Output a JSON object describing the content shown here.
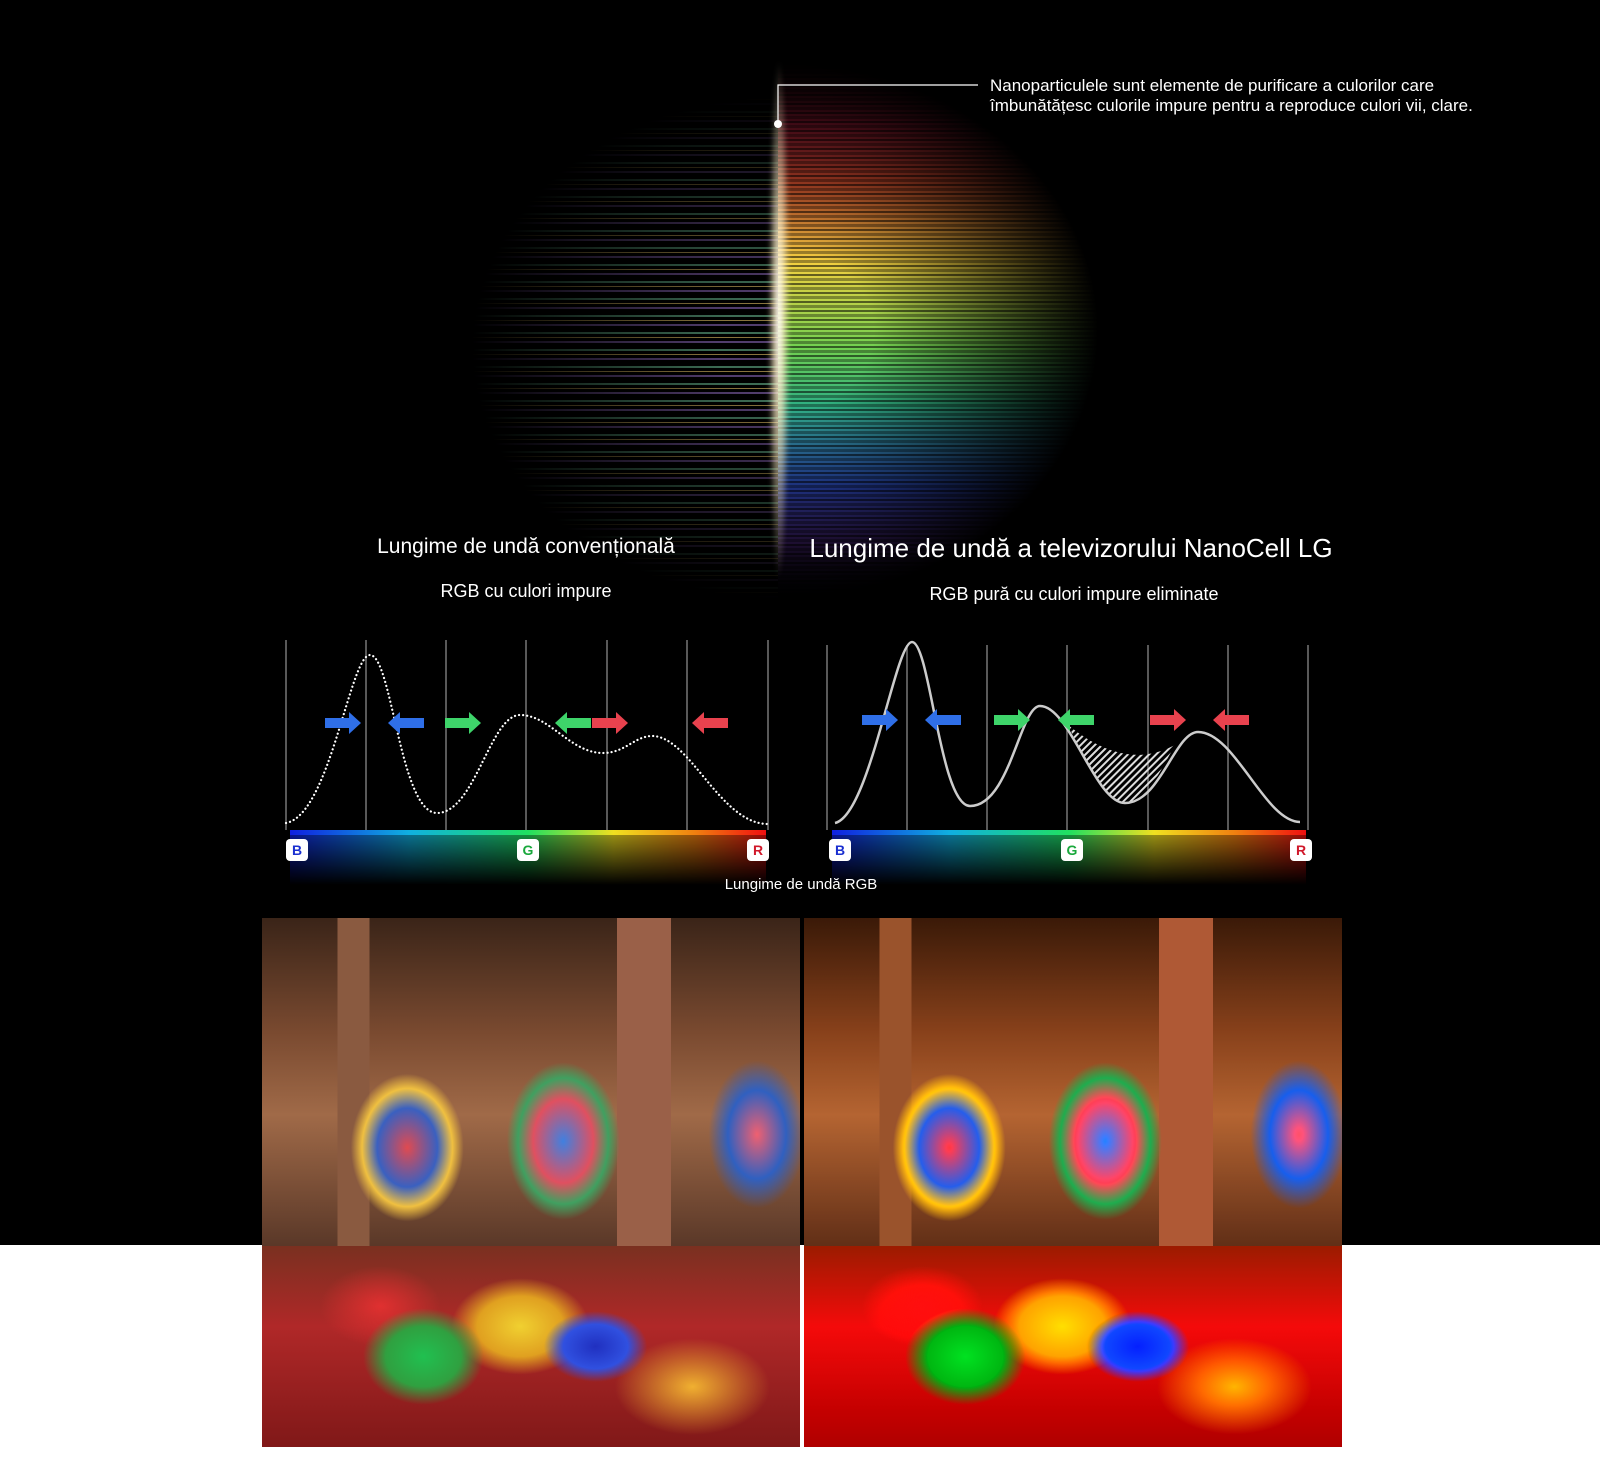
{
  "annotation": {
    "line1": "Nanoparticulele sunt elemente de purificare a culorilor care",
    "line2": "îmbunătățesc culorile impure pentru a reproduce culori vii, clare."
  },
  "conventional": {
    "title": "Lungime de undă convențională",
    "subtitle": "RGB cu culori impure"
  },
  "nanocell": {
    "title": "Lungime de undă a televizorului NanoCell LG",
    "subtitle": "RGB pură cu culori impure eliminate"
  },
  "spectrum": {
    "badges": [
      "B",
      "G",
      "R"
    ],
    "axis_label": "Lungime de undă RGB",
    "colors": {
      "blue": "#2f6fe8",
      "green": "#3ed46a",
      "red": "#e8424e"
    }
  },
  "photos": {
    "left": "conventional-mosque-photo",
    "right": "nanocell-mosque-photo"
  }
}
